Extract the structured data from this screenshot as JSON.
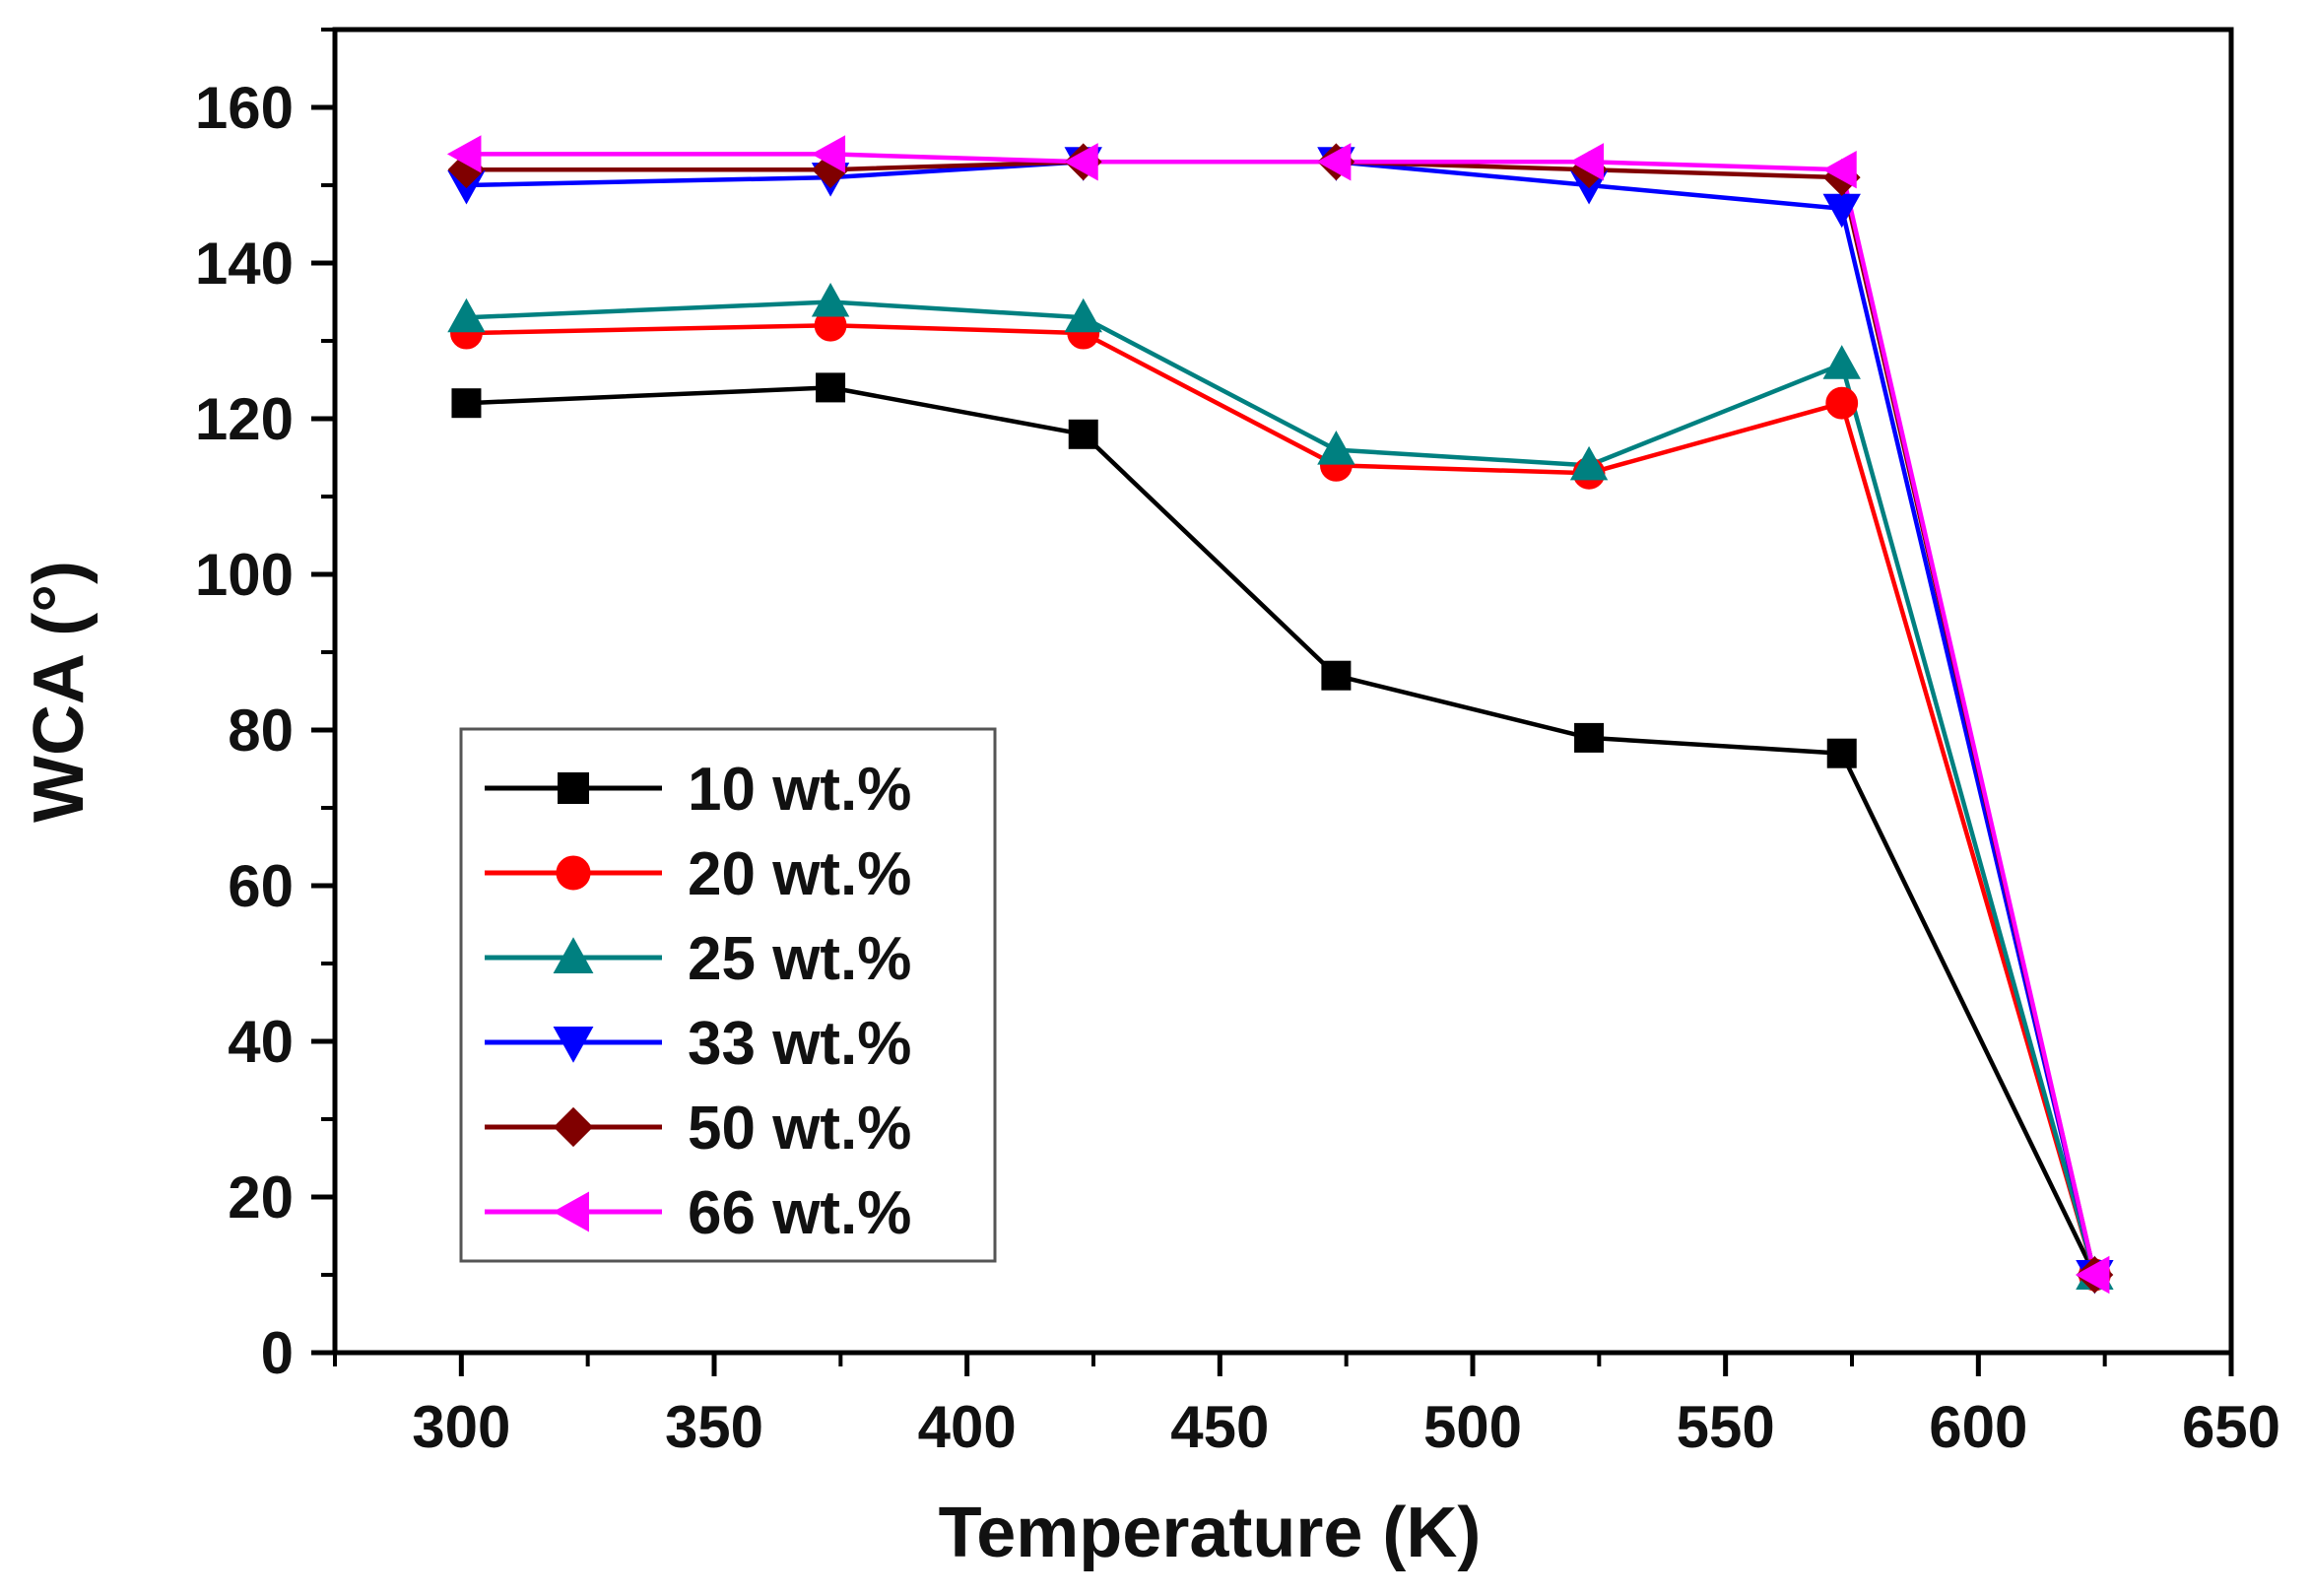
{
  "chart_data": {
    "type": "line",
    "title": "",
    "xlabel": "Temperature (K)",
    "ylabel": "WCA (°)",
    "xlim": [
      275,
      650
    ],
    "ylim": [
      0,
      170
    ],
    "x_ticks": [
      300,
      350,
      400,
      450,
      500,
      550,
      600,
      650
    ],
    "y_ticks": [
      0,
      20,
      40,
      60,
      80,
      100,
      120,
      140,
      160
    ],
    "x_tick_labels": [
      "300",
      "350",
      "400",
      "450",
      "500",
      "550",
      "600",
      "650"
    ],
    "y_tick_labels": [
      "0",
      "20",
      "40",
      "60",
      "80",
      "100",
      "120",
      "140",
      "160"
    ],
    "grid": false,
    "legend_position": "lower-left",
    "x": [
      301,
      373,
      423,
      473,
      523,
      573,
      623
    ],
    "series": [
      {
        "name": "10 wt.%",
        "color": "#000000",
        "marker": "square",
        "values": [
          122,
          124,
          118,
          87,
          79,
          77,
          10
        ]
      },
      {
        "name": "20 wt.%",
        "color": "#ff0000",
        "marker": "circle",
        "values": [
          131,
          132,
          131,
          114,
          113,
          122,
          10
        ]
      },
      {
        "name": "25 wt.%",
        "color": "#008080",
        "marker": "triangle-up",
        "values": [
          133,
          135,
          133,
          116,
          114,
          127,
          10
        ]
      },
      {
        "name": "33 wt.%",
        "color": "#0000ff",
        "marker": "triangle-down",
        "values": [
          150,
          151,
          153,
          153,
          150,
          147,
          10
        ]
      },
      {
        "name": "50 wt.%",
        "color": "#800000",
        "marker": "diamond",
        "values": [
          152,
          152,
          153,
          153,
          152,
          151,
          10
        ]
      },
      {
        "name": "66 wt.%",
        "color": "#ff00ff",
        "marker": "triangle-left",
        "values": [
          154,
          154,
          153,
          153,
          153,
          152,
          10
        ]
      }
    ]
  }
}
